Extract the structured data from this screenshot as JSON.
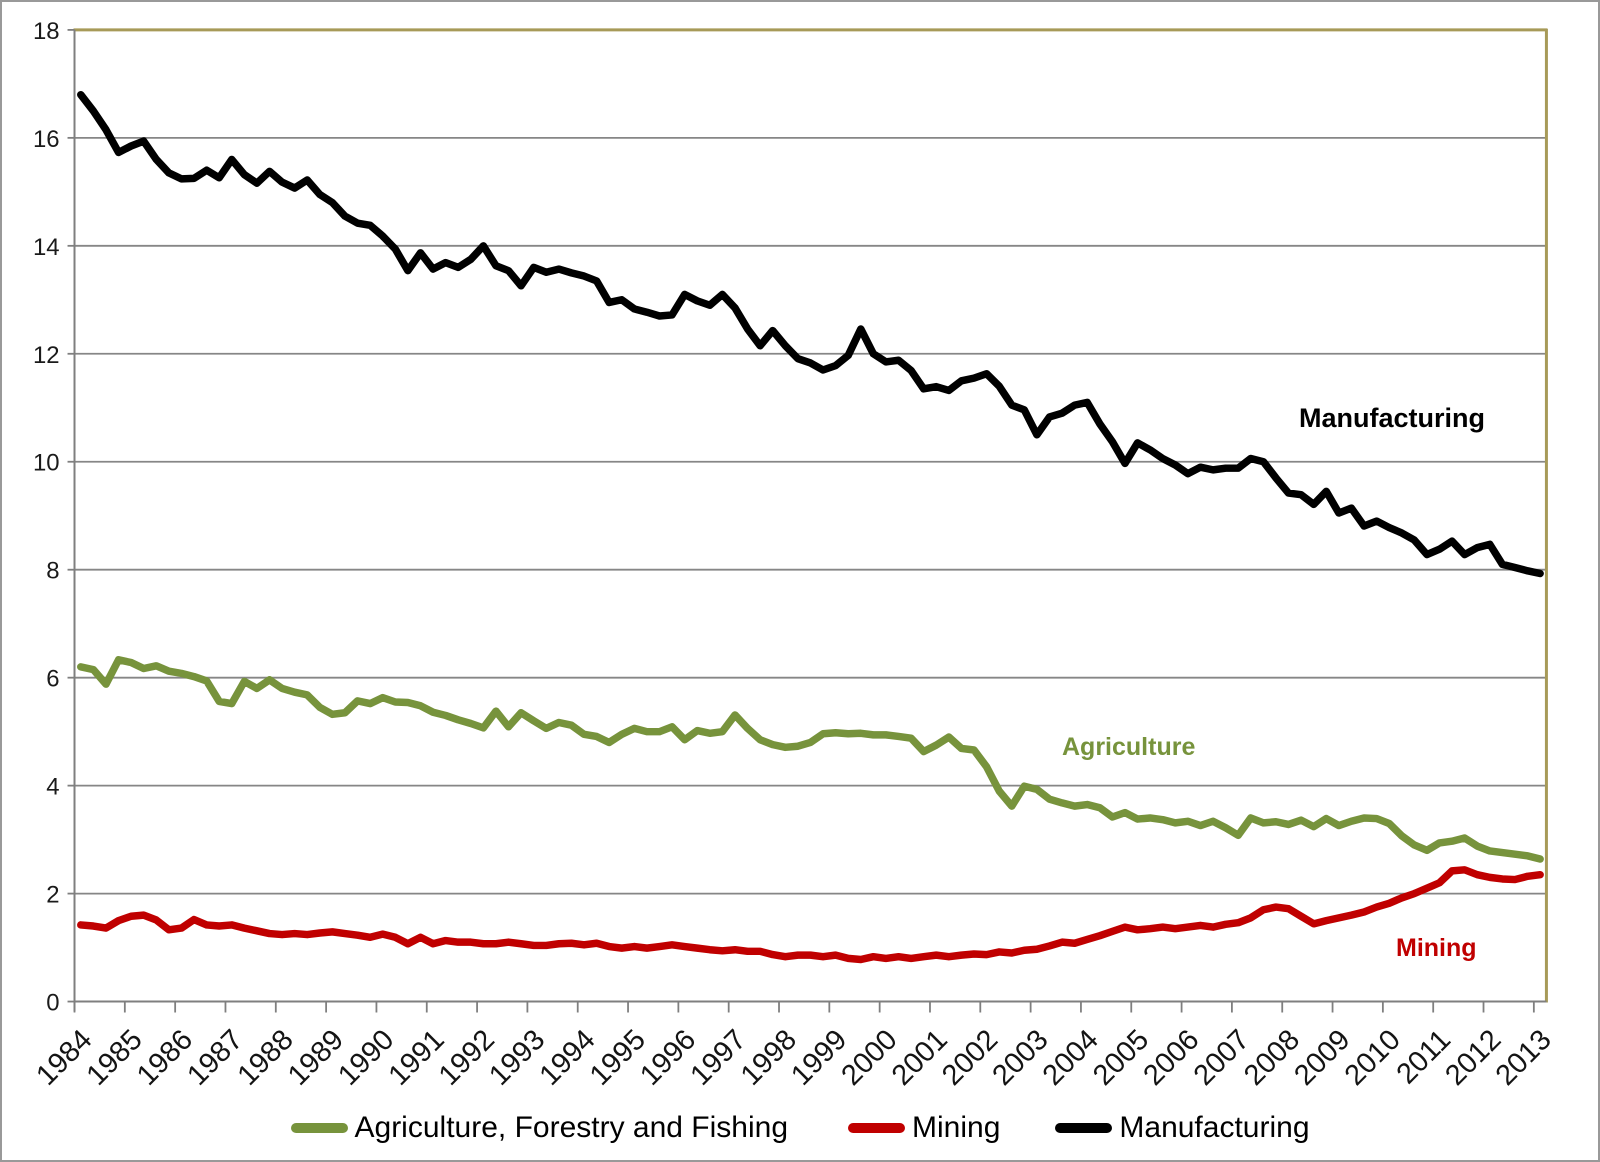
{
  "chart_data": {
    "type": "line",
    "title": "",
    "xlabel": "",
    "ylabel": "",
    "ylim": [
      0,
      18
    ],
    "y_ticks": [
      0,
      2,
      4,
      6,
      8,
      10,
      12,
      14,
      16,
      18
    ],
    "grid": "horizontal",
    "grid_color": "#868686",
    "axis_color": "#7F7F7F",
    "plot_border_color": "#A79A58",
    "legend_position": "bottom",
    "x_frequency": "quarterly",
    "points_per_year": 4,
    "categories_years": [
      "1984",
      "1985",
      "1986",
      "1987",
      "1988",
      "1989",
      "1990",
      "1991",
      "1992",
      "1993",
      "1994",
      "1995",
      "1996",
      "1997",
      "1998",
      "1999",
      "2000",
      "2001",
      "2002",
      "2003",
      "2004",
      "2005",
      "2006",
      "2007",
      "2008",
      "2009",
      "2010",
      "2011",
      "2012",
      "2013"
    ],
    "series": [
      {
        "id": "agriculture",
        "name": "Agriculture, Forestry and Fishing",
        "color": "#77933C",
        "values": [
          6.2,
          6.15,
          5.88,
          6.33,
          6.28,
          6.17,
          6.22,
          6.12,
          6.08,
          6.02,
          5.94,
          5.56,
          5.52,
          5.93,
          5.8,
          5.96,
          5.8,
          5.73,
          5.68,
          5.45,
          5.32,
          5.35,
          5.57,
          5.52,
          5.63,
          5.55,
          5.54,
          5.48,
          5.36,
          5.3,
          5.22,
          5.15,
          5.07,
          5.38,
          5.09,
          5.35,
          5.2,
          5.06,
          5.17,
          5.12,
          4.95,
          4.91,
          4.8,
          4.95,
          5.06,
          5.0,
          5.0,
          5.09,
          4.85,
          5.02,
          4.97,
          5.0,
          5.31,
          5.06,
          4.85,
          4.76,
          4.71,
          4.73,
          4.8,
          4.96,
          4.98,
          4.96,
          4.97,
          4.94,
          4.94,
          4.91,
          4.88,
          4.63,
          4.75,
          4.9,
          4.69,
          4.66,
          4.35,
          3.9,
          3.62,
          3.99,
          3.93,
          3.75,
          3.68,
          3.62,
          3.65,
          3.59,
          3.42,
          3.5,
          3.38,
          3.4,
          3.37,
          3.31,
          3.34,
          3.26,
          3.34,
          3.22,
          3.08,
          3.4,
          3.31,
          3.33,
          3.28,
          3.36,
          3.24,
          3.39,
          3.26,
          3.34,
          3.4,
          3.39,
          3.3,
          3.07,
          2.9,
          2.8,
          2.94,
          2.97,
          3.03,
          2.88,
          2.79,
          2.76,
          2.73,
          2.7,
          2.64
        ]
      },
      {
        "id": "mining",
        "name": "Mining",
        "color": "#C00000",
        "values": [
          1.42,
          1.4,
          1.36,
          1.5,
          1.58,
          1.6,
          1.51,
          1.33,
          1.36,
          1.52,
          1.42,
          1.4,
          1.42,
          1.36,
          1.31,
          1.26,
          1.24,
          1.26,
          1.24,
          1.27,
          1.29,
          1.26,
          1.23,
          1.19,
          1.25,
          1.19,
          1.07,
          1.19,
          1.07,
          1.13,
          1.1,
          1.1,
          1.07,
          1.07,
          1.1,
          1.07,
          1.04,
          1.04,
          1.07,
          1.08,
          1.05,
          1.08,
          1.02,
          0.99,
          1.02,
          0.99,
          1.02,
          1.05,
          1.02,
          0.99,
          0.96,
          0.94,
          0.96,
          0.93,
          0.93,
          0.87,
          0.83,
          0.86,
          0.86,
          0.83,
          0.86,
          0.8,
          0.78,
          0.83,
          0.8,
          0.83,
          0.8,
          0.83,
          0.86,
          0.83,
          0.86,
          0.88,
          0.87,
          0.92,
          0.9,
          0.95,
          0.97,
          1.03,
          1.1,
          1.08,
          1.15,
          1.22,
          1.3,
          1.38,
          1.33,
          1.35,
          1.38,
          1.35,
          1.38,
          1.41,
          1.38,
          1.43,
          1.46,
          1.55,
          1.7,
          1.75,
          1.72,
          1.58,
          1.44,
          1.5,
          1.55,
          1.6,
          1.66,
          1.75,
          1.82,
          1.92,
          2.0,
          2.1,
          2.2,
          2.42,
          2.44,
          2.35,
          2.3,
          2.27,
          2.26,
          2.32,
          2.35
        ]
      },
      {
        "id": "manufacturing",
        "name": "Manufacturing",
        "color": "#000000",
        "values": [
          16.8,
          16.5,
          16.15,
          15.73,
          15.85,
          15.94,
          15.6,
          15.35,
          15.24,
          15.25,
          15.4,
          15.26,
          15.6,
          15.32,
          15.16,
          15.38,
          15.18,
          15.07,
          15.22,
          14.95,
          14.8,
          14.55,
          14.42,
          14.38,
          14.18,
          13.94,
          13.54,
          13.87,
          13.57,
          13.69,
          13.6,
          13.75,
          14.0,
          13.63,
          13.54,
          13.26,
          13.6,
          13.51,
          13.57,
          13.5,
          13.44,
          13.35,
          12.95,
          13.0,
          12.83,
          12.77,
          12.7,
          12.72,
          13.1,
          12.98,
          12.9,
          13.1,
          12.85,
          12.46,
          12.15,
          12.43,
          12.15,
          11.91,
          11.83,
          11.7,
          11.78,
          11.97,
          12.46,
          12.0,
          11.85,
          11.88,
          11.69,
          11.35,
          11.39,
          11.32,
          11.5,
          11.55,
          11.63,
          11.4,
          11.05,
          10.96,
          10.5,
          10.83,
          10.9,
          11.05,
          11.1,
          10.7,
          10.37,
          9.97,
          10.35,
          10.22,
          10.06,
          9.94,
          9.78,
          9.9,
          9.85,
          9.88,
          9.88,
          10.06,
          10.0,
          9.7,
          9.42,
          9.39,
          9.21,
          9.45,
          9.05,
          9.14,
          8.81,
          8.9,
          8.78,
          8.68,
          8.55,
          8.28,
          8.38,
          8.53,
          8.28,
          8.41,
          8.47,
          8.1,
          8.04,
          7.98,
          7.93
        ]
      }
    ]
  },
  "annotations": {
    "manufacturing": {
      "text": "Manufacturing",
      "color": "#000000"
    },
    "agriculture": {
      "text": "Agriculture",
      "color": "#77933C"
    },
    "mining": {
      "text": "Mining",
      "color": "#C00000"
    }
  },
  "legend": {
    "items": [
      {
        "label": "Agriculture, Forestry and Fishing",
        "color": "#77933C"
      },
      {
        "label": "Mining",
        "color": "#C00000"
      },
      {
        "label": "Manufacturing",
        "color": "#000000"
      }
    ]
  }
}
